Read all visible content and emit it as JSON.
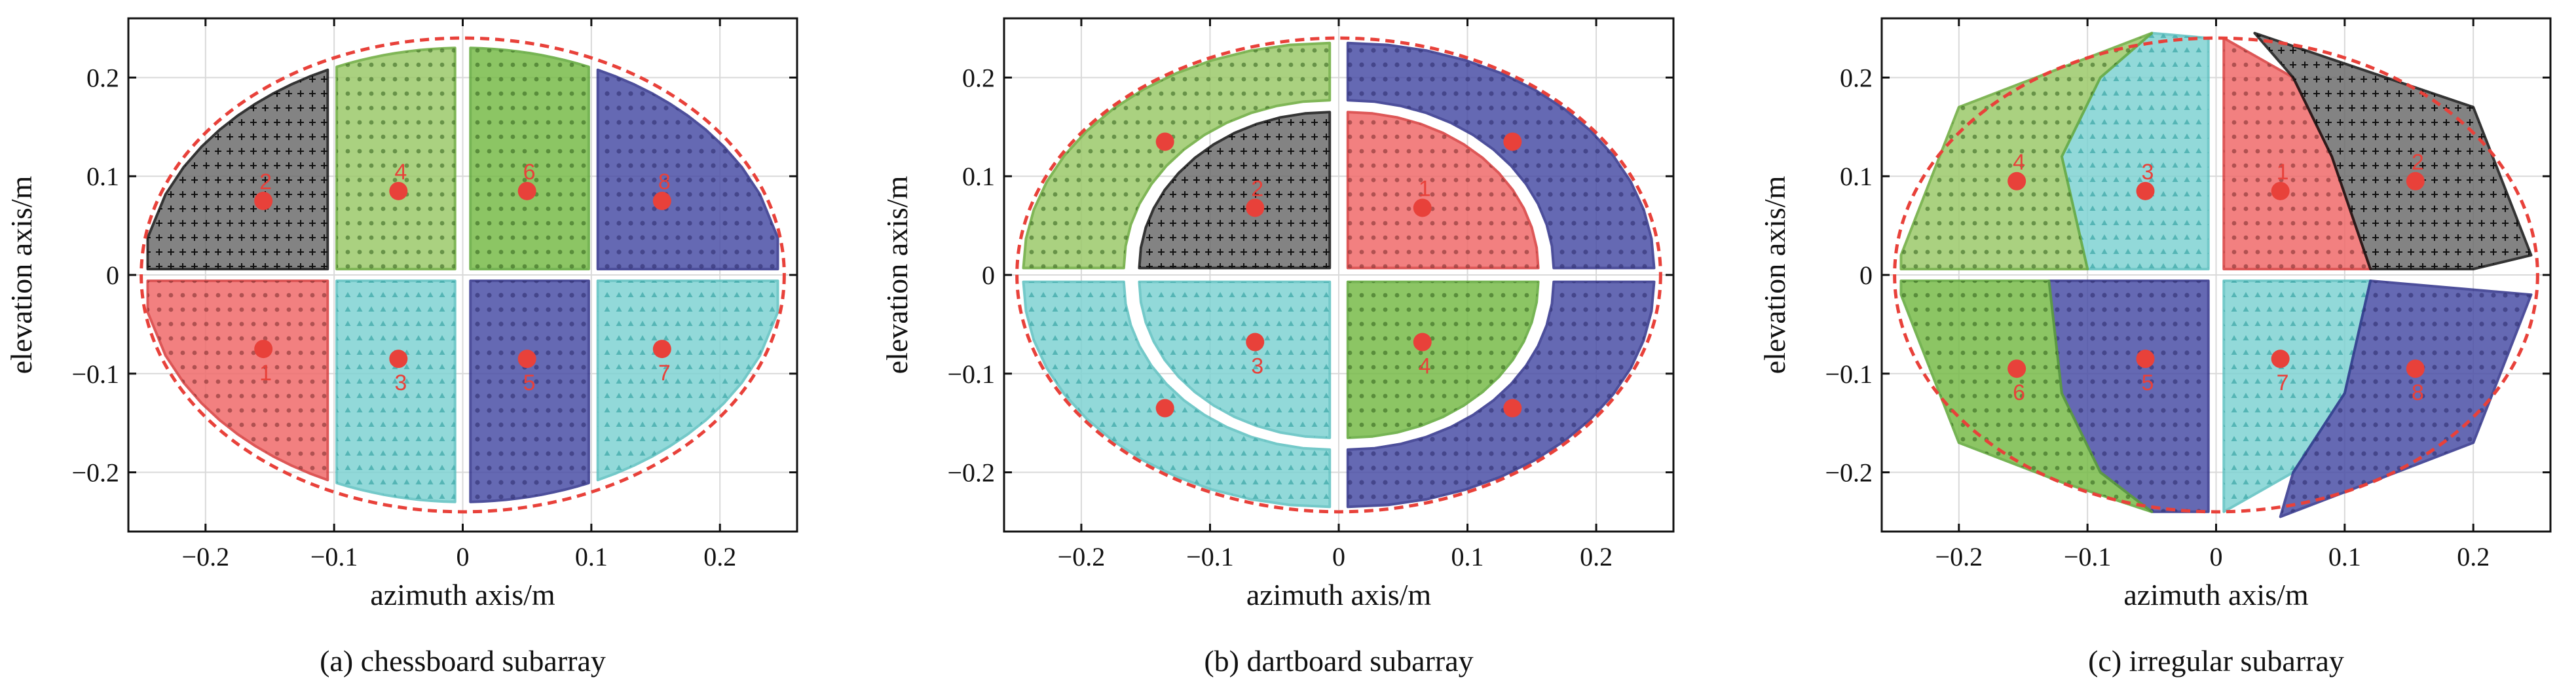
{
  "chart_data": [
    {
      "type": "scatter",
      "caption": "(a) chessboard subarray",
      "xlabel": "azimuth axis/m",
      "ylabel": "elevation axis/m",
      "xlim": [
        -0.26,
        0.26
      ],
      "ylim": [
        -0.26,
        0.26
      ],
      "xticks": [
        -0.2,
        -0.1,
        0,
        0.1,
        0.2
      ],
      "yticks": [
        0.2,
        0.1,
        0,
        -0.1,
        -0.2
      ],
      "xtick_labels": [
        "−0.2",
        "−0.1",
        "0",
        "0.1",
        "0.2"
      ],
      "ytick_labels": [
        "0.2",
        "0.1",
        "0",
        "−0.1",
        "−0.2"
      ],
      "grid": true,
      "aperture_ellipse": {
        "a": 0.25,
        "b": 0.24
      },
      "subarrays": [
        {
          "label": "1",
          "color": "#f06b6b",
          "edge": "#d83a3a",
          "center": [
            -0.155,
            -0.075
          ]
        },
        {
          "label": "2",
          "color": "#6e6e6e",
          "edge": "#111111",
          "center": [
            -0.155,
            0.075
          ]
        },
        {
          "label": "3",
          "color": "#7fd3d3",
          "edge": "#5cc0c0",
          "center": [
            -0.05,
            -0.085
          ]
        },
        {
          "label": "4",
          "color": "#9cc96b",
          "edge": "#6aaa3a",
          "center": [
            -0.05,
            0.085
          ]
        },
        {
          "label": "5",
          "color": "#4b4fa6",
          "edge": "#2e318a",
          "center": [
            0.05,
            -0.085
          ]
        },
        {
          "label": "6",
          "color": "#78bb4a",
          "edge": "#5fa737",
          "center": [
            0.05,
            0.085
          ]
        },
        {
          "label": "7",
          "color": "#7fd3d3",
          "edge": "#5cc0c0",
          "center": [
            0.155,
            -0.075
          ]
        },
        {
          "label": "8",
          "color": "#4b4fa6",
          "edge": "#2e318a",
          "center": [
            0.155,
            0.075
          ]
        }
      ]
    },
    {
      "type": "scatter",
      "caption": "(b) dartboard subarray",
      "xlabel": "azimuth axis/m",
      "ylabel": "elevation axis/m",
      "xlim": [
        -0.26,
        0.26
      ],
      "ylim": [
        -0.26,
        0.26
      ],
      "xticks": [
        -0.2,
        -0.1,
        0,
        0.1,
        0.2
      ],
      "yticks": [
        0.2,
        0.1,
        0,
        -0.1,
        -0.2
      ],
      "xtick_labels": [
        "−0.2",
        "−0.1",
        "0",
        "0.1",
        "0.2"
      ],
      "ytick_labels": [
        "0.2",
        "0.1",
        "0",
        "−0.1",
        "−0.2"
      ],
      "grid": true,
      "aperture_ellipse": {
        "a": 0.25,
        "b": 0.24
      },
      "subarrays": [
        {
          "label": "1",
          "color": "#f06b6b",
          "edge": "#d83a3a",
          "center": [
            0.065,
            0.068
          ]
        },
        {
          "label": "2",
          "color": "#6e6e6e",
          "edge": "#111111",
          "center": [
            -0.065,
            0.068
          ]
        },
        {
          "label": "3",
          "color": "#7fd3d3",
          "edge": "#5cc0c0",
          "center": [
            -0.065,
            -0.068
          ]
        },
        {
          "label": "4",
          "color": "#78bb4a",
          "edge": "#5fa737",
          "center": [
            0.065,
            -0.068
          ]
        },
        {
          "label": "",
          "color": "#9cc96b",
          "edge": "#6aaa3a",
          "center": [
            -0.135,
            0.135
          ]
        },
        {
          "label": "",
          "color": "#4b4fa6",
          "edge": "#2e318a",
          "center": [
            0.135,
            0.135
          ]
        },
        {
          "label": "",
          "color": "#7fd3d3",
          "edge": "#5cc0c0",
          "center": [
            -0.135,
            -0.135
          ]
        },
        {
          "label": "",
          "color": "#4b4fa6",
          "edge": "#2e318a",
          "center": [
            0.135,
            -0.135
          ]
        }
      ]
    },
    {
      "type": "scatter",
      "caption": "(c) irregular subarray",
      "xlabel": "azimuth axis/m",
      "ylabel": "elevation axis/m",
      "xlim": [
        -0.26,
        0.26
      ],
      "ylim": [
        -0.26,
        0.26
      ],
      "xticks": [
        -0.2,
        -0.1,
        0,
        0.1,
        0.2
      ],
      "yticks": [
        0.2,
        0.1,
        0,
        -0.1,
        -0.2
      ],
      "xtick_labels": [
        "−0.2",
        "−0.1",
        "0",
        "0.1",
        "0.2"
      ],
      "ytick_labels": [
        "0.2",
        "0.1",
        "0",
        "−0.1",
        "−0.2"
      ],
      "grid": true,
      "aperture_ellipse": {
        "a": 0.25,
        "b": 0.24
      },
      "subarrays": [
        {
          "label": "1",
          "color": "#f06b6b",
          "edge": "#d83a3a",
          "center": [
            0.05,
            0.085
          ]
        },
        {
          "label": "2",
          "color": "#6e6e6e",
          "edge": "#111111",
          "center": [
            0.155,
            0.095
          ]
        },
        {
          "label": "3",
          "color": "#7fd3d3",
          "edge": "#5cc0c0",
          "center": [
            -0.055,
            0.085
          ]
        },
        {
          "label": "4",
          "color": "#9cc96b",
          "edge": "#6aaa3a",
          "center": [
            -0.155,
            0.095
          ]
        },
        {
          "label": "5",
          "color": "#4b4fa6",
          "edge": "#2e318a",
          "center": [
            -0.055,
            -0.085
          ]
        },
        {
          "label": "6",
          "color": "#78bb4a",
          "edge": "#5fa737",
          "center": [
            -0.155,
            -0.095
          ]
        },
        {
          "label": "7",
          "color": "#7fd3d3",
          "edge": "#5cc0c0",
          "center": [
            0.05,
            -0.085
          ]
        },
        {
          "label": "8",
          "color": "#4b4fa6",
          "edge": "#2e318a",
          "center": [
            0.155,
            -0.095
          ]
        }
      ]
    }
  ]
}
